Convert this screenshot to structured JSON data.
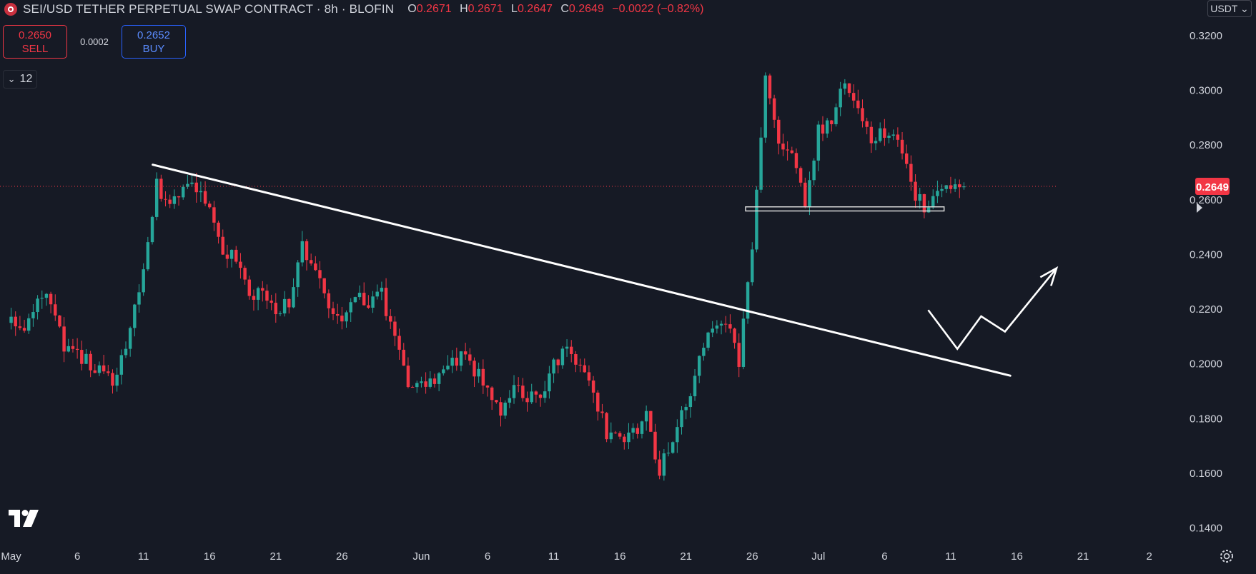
{
  "header": {
    "title": "SEI/USD TETHER PERPETUAL SWAP CONTRACT · 8h · BLOFIN",
    "open_label": "O",
    "open": "0.2671",
    "high_label": "H",
    "high": "0.2671",
    "low_label": "L",
    "low": "0.2647",
    "close_label": "C",
    "close": "0.2649",
    "change": "−0.0022 (−0.82%)"
  },
  "trade": {
    "sell_price": "0.2650",
    "sell_label": "SELL",
    "spread": "0.0002",
    "buy_price": "0.2652",
    "buy_label": "BUY"
  },
  "indicators_toggle": {
    "icon": "chevron-down-icon",
    "count": "12"
  },
  "currency_select": "USDT ⌄",
  "colors": {
    "background": "#161a25",
    "up": "#26a69a",
    "down": "#f23645",
    "text": "#d1d4dc",
    "drawing": "#ffffff",
    "price_line": "#f23645"
  },
  "chart_data": {
    "type": "candlestick",
    "symbol": "SEI/USD",
    "interval": "8h",
    "ylim": [
      0.13,
      0.333
    ],
    "price_scale_ticks": [
      "0.3200",
      "0.3000",
      "0.2800",
      "0.2600",
      "0.2400",
      "0.2200",
      "0.2000",
      "0.1800",
      "0.1600",
      "0.1400"
    ],
    "x_ticks": [
      "May",
      "6",
      "11",
      "16",
      "21",
      "26",
      "Jun",
      "6",
      "11",
      "16",
      "21",
      "26",
      "Jul",
      "6",
      "11",
      "16",
      "21",
      "2"
    ],
    "x_range_days": [
      -0.3,
      89.1
    ],
    "last_price": "0.2649",
    "close_points": [
      [
        0,
        0.215
      ],
      [
        1,
        0.211
      ],
      [
        2,
        0.221
      ],
      [
        3,
        0.224
      ],
      [
        4,
        0.205
      ],
      [
        5,
        0.204
      ],
      [
        6,
        0.2
      ],
      [
        7,
        0.195
      ],
      [
        8,
        0.195
      ],
      [
        9,
        0.215
      ],
      [
        10,
        0.235
      ],
      [
        11,
        0.265
      ],
      [
        12,
        0.258
      ],
      [
        13,
        0.263
      ],
      [
        14,
        0.264
      ],
      [
        15,
        0.256
      ],
      [
        16,
        0.241
      ],
      [
        17,
        0.24
      ],
      [
        18,
        0.227
      ],
      [
        19,
        0.225
      ],
      [
        20,
        0.22
      ],
      [
        21,
        0.222
      ],
      [
        22,
        0.243
      ],
      [
        23,
        0.232
      ],
      [
        24,
        0.222
      ],
      [
        25,
        0.218
      ],
      [
        26,
        0.225
      ],
      [
        27,
        0.222
      ],
      [
        28,
        0.225
      ],
      [
        29,
        0.21
      ],
      [
        30,
        0.193
      ],
      [
        31,
        0.193
      ],
      [
        32,
        0.195
      ],
      [
        33,
        0.2
      ],
      [
        34,
        0.203
      ],
      [
        35,
        0.197
      ],
      [
        36,
        0.192
      ],
      [
        37,
        0.18
      ],
      [
        38,
        0.19
      ],
      [
        39,
        0.188
      ],
      [
        40,
        0.189
      ],
      [
        41,
        0.199
      ],
      [
        42,
        0.208
      ],
      [
        43,
        0.199
      ],
      [
        44,
        0.19
      ],
      [
        45,
        0.174
      ],
      [
        46,
        0.174
      ],
      [
        47,
        0.174
      ],
      [
        48,
        0.18
      ],
      [
        49,
        0.162
      ],
      [
        50,
        0.17
      ],
      [
        51,
        0.186
      ],
      [
        52,
        0.2
      ],
      [
        53,
        0.215
      ],
      [
        54,
        0.217
      ],
      [
        55,
        0.2
      ],
      [
        56,
        0.243
      ],
      [
        57,
        0.305
      ],
      [
        58,
        0.28
      ],
      [
        59,
        0.275
      ],
      [
        60,
        0.26
      ],
      [
        61,
        0.285
      ],
      [
        62,
        0.288
      ],
      [
        63,
        0.305
      ],
      [
        64,
        0.295
      ],
      [
        65,
        0.28
      ],
      [
        66,
        0.285
      ],
      [
        67,
        0.282
      ],
      [
        68,
        0.265
      ],
      [
        69,
        0.257
      ],
      [
        70,
        0.264
      ],
      [
        71,
        0.265
      ],
      [
        72,
        0.2649
      ]
    ],
    "drawings": [
      {
        "type": "trendline",
        "from": [
          10.7,
          0.2728
        ],
        "to": [
          75.5,
          0.1957
        ]
      },
      {
        "type": "horizontal_zone",
        "from_day": 55.5,
        "to_day": 70.5,
        "top": 0.2574,
        "bottom": 0.2559
      },
      {
        "type": "arrow_path",
        "points": [
          [
            69.3,
            0.2197
          ],
          [
            71.5,
            0.2055
          ],
          [
            73.3,
            0.2174
          ],
          [
            75.1,
            0.2118
          ],
          [
            79.0,
            0.235
          ]
        ]
      }
    ]
  }
}
